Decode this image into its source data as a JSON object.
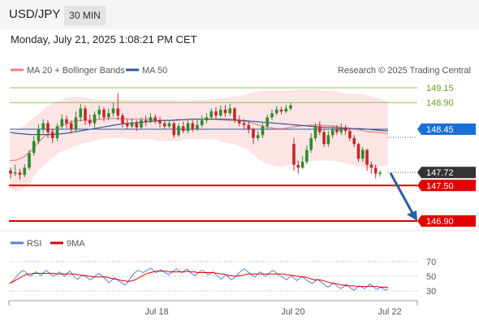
{
  "header": {
    "symbol": "USD/JPY",
    "timeframe": "30 MIN"
  },
  "timestamp": "Monday, July 21, 2025 1:08:21 PM CET",
  "colors": {
    "ma20": "#f08080",
    "ma50": "#2e5a9c",
    "band": "#fde0e0",
    "green": "#8bc34a",
    "red": "#e00000",
    "blue": "#1a6fd6",
    "up": "#2e8b2e",
    "down": "#c62828",
    "rsi": "#5b7fd6",
    "rsi_ma": "#e00000",
    "current_bg": "#333333"
  },
  "legend": {
    "ma20": "MA 20 + Bollinger Bands",
    "ma50": "MA 50",
    "source": "Research © 2025 Trading Central"
  },
  "levels": [
    {
      "value": 149.15,
      "label": "149.15",
      "kind": "resistance-green"
    },
    {
      "value": 148.9,
      "label": "148.90",
      "kind": "resistance-green"
    },
    {
      "value": 148.45,
      "label": "148.45",
      "kind": "pivot-blue"
    },
    {
      "value": 147.72,
      "label": "147.72",
      "kind": "current-price"
    },
    {
      "value": 147.5,
      "label": "147.50",
      "kind": "support-red"
    },
    {
      "value": 146.9,
      "label": "146.90",
      "kind": "support-red"
    }
  ],
  "x_axis": {
    "ticks": [
      "Jul 18",
      "Jul 20",
      "Jul 22"
    ]
  },
  "rsi_panel": {
    "legend": {
      "rsi": "RSI",
      "ma": "9MA"
    },
    "ticks": [
      "70",
      "50",
      "30"
    ]
  },
  "chart_data": {
    "type": "candlestick",
    "instrument": "USD/JPY",
    "interval": "30 MIN",
    "xlabel": "",
    "ylabel": "",
    "ylim": [
      146.8,
      149.25
    ],
    "candles": [
      [
        147.75,
        147.7,
        147.8,
        147.62
      ],
      [
        147.7,
        147.72,
        147.85,
        147.66
      ],
      [
        147.72,
        147.68,
        147.78,
        147.6
      ],
      [
        147.68,
        147.8,
        147.86,
        147.64
      ],
      [
        147.8,
        148.05,
        148.1,
        147.76
      ],
      [
        148.05,
        148.25,
        148.33,
        148.0
      ],
      [
        148.25,
        148.45,
        148.53,
        148.2
      ],
      [
        148.45,
        148.55,
        148.62,
        148.38
      ],
      [
        148.55,
        148.4,
        148.6,
        148.3
      ],
      [
        148.4,
        148.3,
        148.45,
        148.22
      ],
      [
        148.3,
        148.5,
        148.55,
        148.25
      ],
      [
        148.5,
        148.62,
        148.7,
        148.45
      ],
      [
        148.62,
        148.55,
        148.68,
        148.47
      ],
      [
        148.55,
        148.45,
        148.6,
        148.38
      ],
      [
        148.45,
        148.65,
        148.75,
        148.4
      ],
      [
        148.65,
        148.8,
        148.88,
        148.58
      ],
      [
        148.8,
        148.6,
        148.85,
        148.52
      ],
      [
        148.6,
        148.55,
        148.7,
        148.5
      ],
      [
        148.55,
        148.7,
        148.75,
        148.48
      ],
      [
        148.7,
        148.78,
        148.85,
        148.62
      ],
      [
        148.78,
        148.65,
        148.82,
        148.58
      ],
      [
        148.65,
        148.72,
        148.8,
        148.6
      ],
      [
        148.72,
        148.8,
        148.9,
        148.66
      ],
      [
        148.8,
        148.68,
        149.06,
        148.6
      ],
      [
        148.68,
        148.55,
        148.72,
        148.48
      ],
      [
        148.55,
        148.5,
        148.62,
        148.45
      ],
      [
        148.5,
        148.55,
        148.63,
        148.47
      ],
      [
        148.55,
        148.48,
        148.6,
        148.42
      ],
      [
        148.48,
        148.6,
        148.65,
        148.45
      ],
      [
        148.6,
        148.58,
        148.68,
        148.5
      ],
      [
        148.58,
        148.65,
        148.72,
        148.55
      ],
      [
        148.65,
        148.6,
        148.7,
        148.54
      ],
      [
        148.6,
        148.55,
        148.66,
        148.48
      ],
      [
        148.55,
        148.5,
        148.6,
        148.45
      ],
      [
        148.5,
        148.55,
        148.6,
        148.47
      ],
      [
        148.55,
        148.35,
        148.58,
        148.3
      ],
      [
        148.35,
        148.5,
        148.55,
        148.32
      ],
      [
        148.5,
        148.42,
        148.58,
        148.38
      ],
      [
        148.42,
        148.55,
        148.6,
        148.38
      ],
      [
        148.55,
        148.45,
        148.6,
        148.4
      ],
      [
        148.45,
        148.52,
        148.6,
        148.42
      ],
      [
        148.52,
        148.6,
        148.68,
        148.48
      ],
      [
        148.6,
        148.65,
        148.72,
        148.55
      ],
      [
        148.65,
        148.75,
        148.8,
        148.6
      ],
      [
        148.75,
        148.68,
        148.82,
        148.62
      ],
      [
        148.68,
        148.78,
        148.85,
        148.65
      ],
      [
        148.78,
        148.72,
        148.86,
        148.66
      ],
      [
        148.72,
        148.8,
        148.88,
        148.68
      ],
      [
        148.8,
        148.6,
        148.82,
        148.55
      ],
      [
        148.6,
        148.55,
        148.68,
        148.5
      ],
      [
        148.55,
        148.52,
        148.62,
        148.45
      ],
      [
        148.52,
        148.45,
        148.58,
        148.38
      ],
      [
        148.45,
        148.3,
        148.48,
        148.2
      ],
      [
        148.3,
        148.35,
        148.42,
        148.25
      ],
      [
        148.35,
        148.5,
        148.55,
        148.3
      ],
      [
        148.5,
        148.65,
        148.7,
        148.45
      ],
      [
        148.65,
        148.72,
        148.78,
        148.6
      ],
      [
        148.72,
        148.78,
        148.84,
        148.68
      ],
      [
        148.78,
        148.75,
        148.83,
        148.7
      ],
      [
        148.75,
        148.8,
        148.86,
        148.72
      ],
      [
        148.8,
        148.85,
        148.9,
        148.76
      ],
      [
        148.2,
        147.85,
        148.3,
        147.75
      ],
      [
        147.85,
        147.8,
        147.92,
        147.7
      ],
      [
        147.8,
        147.9,
        148.0,
        147.78
      ],
      [
        147.9,
        148.1,
        148.18,
        147.86
      ],
      [
        148.1,
        148.3,
        148.38,
        148.05
      ],
      [
        148.3,
        148.5,
        148.55,
        148.25
      ],
      [
        148.5,
        148.4,
        148.58,
        148.35
      ],
      [
        148.4,
        148.2,
        148.45,
        148.15
      ],
      [
        148.2,
        148.35,
        148.42,
        148.15
      ],
      [
        148.35,
        148.45,
        148.5,
        148.3
      ],
      [
        148.45,
        148.4,
        148.52,
        148.35
      ],
      [
        148.4,
        148.48,
        148.55,
        148.35
      ],
      [
        148.48,
        148.42,
        148.52,
        148.36
      ],
      [
        148.42,
        148.3,
        148.46,
        148.25
      ],
      [
        148.3,
        148.2,
        148.35,
        148.15
      ],
      [
        148.2,
        147.95,
        148.22,
        147.9
      ],
      [
        147.95,
        148.1,
        148.15,
        147.9
      ],
      [
        148.1,
        147.85,
        148.12,
        147.75
      ],
      [
        147.85,
        147.8,
        147.9,
        147.7
      ],
      [
        147.8,
        147.7,
        147.85,
        147.62
      ],
      [
        147.7,
        147.72,
        147.76,
        147.65
      ]
    ],
    "bollinger_bands": {
      "upper": [
        148.4,
        148.45,
        148.5,
        148.6,
        148.7,
        148.8,
        148.88,
        148.93,
        148.98,
        149.0,
        149.0,
        148.98,
        148.95,
        148.95,
        148.95,
        148.95,
        148.95,
        148.95,
        148.95,
        148.95,
        148.95,
        148.95,
        148.95,
        148.95,
        148.95,
        148.93,
        148.95,
        148.95,
        148.95,
        148.95,
        148.97,
        148.98,
        149.0,
        149.02,
        149.05,
        149.08,
        149.1,
        149.1,
        149.1,
        149.1,
        149.1,
        149.12,
        149.12,
        149.12,
        149.12,
        149.1,
        149.1,
        149.08,
        149.05,
        149.05,
        149.05,
        149.02,
        149.0,
        148.95,
        148.92
      ],
      "lower": [
        147.45,
        147.4,
        147.45,
        147.55,
        147.75,
        147.85,
        147.95,
        148.05,
        148.1,
        148.15,
        148.2,
        148.22,
        148.25,
        148.28,
        148.3,
        148.3,
        148.3,
        148.28,
        148.28,
        148.28,
        148.28,
        148.25,
        148.25,
        148.25,
        148.25,
        148.28,
        148.28,
        148.28,
        148.28,
        148.28,
        148.25,
        148.22,
        148.2,
        148.15,
        148.1,
        148.0,
        147.9,
        147.85,
        147.82,
        147.82,
        147.85,
        147.87,
        147.9,
        147.92,
        147.92,
        147.92,
        147.92,
        147.9,
        147.87,
        147.85,
        147.82,
        147.8,
        147.8,
        147.82,
        147.85
      ],
      "middle_ma20": [
        147.92,
        147.93,
        147.98,
        148.08,
        148.22,
        148.33,
        148.42,
        148.49,
        148.54,
        148.58,
        148.6,
        148.6,
        148.6,
        148.62,
        148.63,
        148.63,
        148.63,
        148.62,
        148.62,
        148.62,
        148.62,
        148.6,
        148.6,
        148.6,
        148.6,
        148.61,
        148.62,
        148.62,
        148.62,
        148.62,
        148.61,
        148.6,
        148.6,
        148.59,
        148.58,
        148.54,
        148.5,
        148.48,
        148.46,
        148.46,
        148.48,
        148.5,
        148.51,
        148.52,
        148.52,
        148.51,
        148.51,
        148.49,
        148.46,
        148.45,
        148.44,
        148.41,
        148.4,
        148.39,
        148.38
      ]
    },
    "ma50": [
      148.4,
      148.38,
      148.37,
      148.36,
      148.36,
      148.36,
      148.36,
      148.37,
      148.38,
      148.4,
      148.42,
      148.44,
      148.46,
      148.48,
      148.5,
      148.52,
      148.54,
      148.55,
      148.56,
      148.57,
      148.58,
      148.59,
      148.6,
      148.6,
      148.61,
      148.61,
      148.62,
      148.62,
      148.62,
      148.62,
      148.62,
      148.62,
      148.61,
      148.6,
      148.59,
      148.58,
      148.57,
      148.56,
      148.55,
      148.54,
      148.53,
      148.52,
      148.51,
      148.5,
      148.49,
      148.48,
      148.48,
      148.47,
      148.47,
      148.46,
      148.46,
      148.45,
      148.44,
      148.43,
      148.42
    ],
    "rsi": [
      40,
      43,
      47,
      51,
      55,
      58,
      56,
      52,
      50,
      53,
      56,
      54,
      51,
      55,
      58,
      55,
      52,
      50,
      53,
      56,
      53,
      50,
      54,
      57,
      53,
      48,
      46,
      49,
      52,
      50,
      47,
      45,
      48,
      51,
      54,
      52,
      49,
      45,
      41,
      44,
      48,
      46,
      43,
      41,
      38,
      41,
      46,
      51,
      55,
      58,
      57,
      55,
      57,
      59,
      61,
      58,
      55,
      57,
      59,
      56,
      54,
      52,
      55,
      58,
      60,
      57,
      55,
      58,
      60,
      56,
      53,
      51,
      54,
      57,
      58,
      55,
      52,
      54,
      56,
      52,
      49,
      46,
      49,
      52,
      48,
      45,
      48,
      51,
      55,
      58,
      60,
      57,
      54,
      51,
      49,
      53,
      56,
      53,
      50,
      53,
      56,
      58,
      55,
      52,
      50,
      48,
      45,
      48,
      51,
      47,
      44,
      47,
      50,
      47,
      44,
      42,
      40,
      43,
      46,
      43,
      40,
      37,
      35,
      38,
      41,
      38,
      35,
      33,
      36,
      39,
      36,
      33,
      31,
      34,
      37,
      35,
      33,
      36,
      39,
      37,
      34,
      32,
      35,
      33,
      31,
      33
    ],
    "rsi_ma": [
      40,
      42,
      44,
      46,
      48,
      50,
      52,
      53,
      53,
      54,
      54,
      54,
      54,
      54,
      54,
      54,
      54,
      54,
      53,
      53,
      53,
      53,
      53,
      53,
      53,
      53,
      52,
      52,
      51,
      51,
      50,
      50,
      49,
      49,
      49,
      49,
      49,
      49,
      48,
      47,
      46,
      46,
      45,
      44,
      44,
      43,
      43,
      44,
      45,
      47,
      49,
      51,
      53,
      54,
      55,
      56,
      57,
      57,
      57,
      57,
      57,
      56,
      56,
      56,
      56,
      56,
      56,
      56,
      57,
      56,
      56,
      56,
      55,
      55,
      55,
      55,
      55,
      55,
      55,
      54,
      54,
      53,
      53,
      52,
      51,
      51,
      50,
      50,
      51,
      51,
      52,
      53,
      53,
      53,
      53,
      53,
      53,
      53,
      53,
      53,
      53,
      53,
      53,
      53,
      53,
      53,
      52,
      52,
      51,
      51,
      50,
      50,
      49,
      49,
      48,
      47,
      46,
      45,
      45,
      45,
      44,
      43,
      42,
      41,
      40,
      40,
      39,
      38,
      38,
      37,
      37,
      37,
      37,
      36,
      36,
      36,
      36,
      36,
      36,
      36,
      36,
      36,
      35,
      35,
      35,
      35
    ],
    "rsi_ylim": [
      20,
      80
    ]
  }
}
